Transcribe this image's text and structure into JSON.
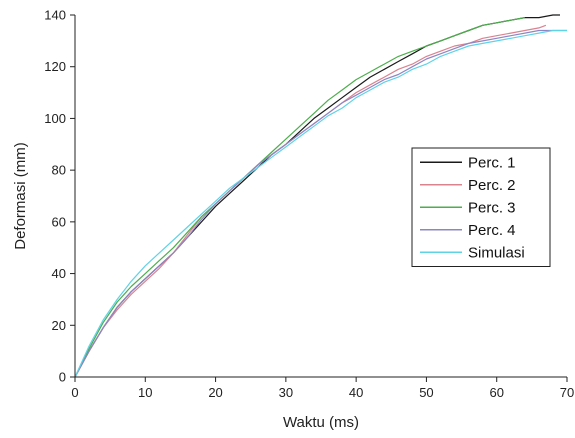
{
  "chart_data": {
    "type": "line",
    "title": "",
    "xlabel": "Waktu (ms)",
    "ylabel": "Deformasi (mm)",
    "xlim": [
      0,
      70
    ],
    "ylim": [
      0,
      140
    ],
    "xticks": [
      0,
      10,
      20,
      30,
      40,
      50,
      60,
      70
    ],
    "yticks": [
      0,
      20,
      40,
      60,
      80,
      100,
      120,
      140
    ],
    "grid": false,
    "legend_position": "right",
    "series": [
      {
        "name": "Perc. 1",
        "color": "#1a1a1a",
        "x": [
          0,
          2,
          4,
          6,
          8,
          10,
          12,
          14,
          16,
          18,
          20,
          22,
          24,
          26,
          28,
          30,
          32,
          34,
          36,
          38,
          40,
          42,
          44,
          46,
          48,
          50,
          52,
          54,
          56,
          58,
          60,
          62,
          64,
          66,
          68,
          69
        ],
        "y": [
          0,
          10,
          19,
          27,
          33,
          38,
          43,
          48,
          54,
          60,
          66,
          71,
          76,
          81,
          86,
          90,
          95,
          100,
          104,
          108,
          112,
          116,
          119,
          122,
          125,
          128,
          130,
          132,
          134,
          136,
          137,
          138,
          139,
          139,
          140,
          140
        ]
      },
      {
        "name": "Perc. 2",
        "color": "#d9838f",
        "x": [
          0,
          2,
          4,
          6,
          8,
          10,
          12,
          14,
          16,
          18,
          20,
          22,
          24,
          26,
          28,
          30,
          32,
          34,
          36,
          38,
          40,
          42,
          44,
          46,
          48,
          50,
          52,
          54,
          56,
          58,
          60,
          62,
          64,
          66,
          67
        ],
        "y": [
          0,
          10,
          19,
          26,
          32,
          37,
          42,
          48,
          55,
          62,
          67,
          72,
          77,
          82,
          86,
          90,
          94,
          98,
          102,
          106,
          110,
          113,
          116,
          119,
          121,
          124,
          126,
          128,
          129,
          131,
          132,
          133,
          134,
          135,
          136
        ]
      },
      {
        "name": "Perc. 3",
        "color": "#4cae4c",
        "x": [
          0,
          2,
          4,
          6,
          8,
          10,
          12,
          14,
          16,
          18,
          20,
          22,
          24,
          26,
          28,
          30,
          32,
          34,
          36,
          38,
          40,
          42,
          44,
          46,
          48,
          50,
          52,
          54,
          56,
          58,
          60,
          62,
          64
        ],
        "y": [
          0,
          11,
          21,
          29,
          35,
          40,
          45,
          50,
          56,
          62,
          67,
          72,
          77,
          82,
          87,
          92,
          97,
          102,
          107,
          111,
          115,
          118,
          121,
          124,
          126,
          128,
          130,
          132,
          134,
          136,
          137,
          138,
          139
        ]
      },
      {
        "name": "Perc. 4",
        "color": "#8e85c4",
        "x": [
          0,
          2,
          4,
          6,
          8,
          10,
          12,
          14,
          16,
          18,
          20,
          22,
          24,
          26,
          28,
          30,
          32,
          34,
          36,
          38,
          40,
          42,
          44,
          46,
          48,
          50,
          52,
          54,
          56,
          58,
          60,
          62,
          64,
          66,
          68,
          70
        ],
        "y": [
          0,
          10,
          19,
          27,
          33,
          38,
          43,
          48,
          54,
          61,
          67,
          72,
          77,
          82,
          86,
          90,
          94,
          98,
          102,
          106,
          109,
          112,
          115,
          117,
          120,
          123,
          125,
          127,
          129,
          130,
          131,
          132,
          133,
          134,
          134,
          134
        ]
      },
      {
        "name": "Simulasi",
        "color": "#5fd3e6",
        "x": [
          0,
          2,
          4,
          6,
          8,
          10,
          12,
          14,
          16,
          18,
          20,
          22,
          24,
          26,
          28,
          30,
          32,
          34,
          36,
          38,
          40,
          42,
          44,
          46,
          48,
          50,
          52,
          54,
          56,
          58,
          60,
          62,
          64,
          66,
          68,
          70
        ],
        "y": [
          0,
          12,
          22,
          30,
          37,
          43,
          48,
          53,
          58,
          63,
          68,
          73,
          77,
          81,
          85,
          89,
          93,
          97,
          101,
          104,
          108,
          111,
          114,
          116,
          119,
          121,
          124,
          126,
          128,
          129,
          130,
          131,
          132,
          133,
          134,
          134
        ]
      }
    ]
  }
}
